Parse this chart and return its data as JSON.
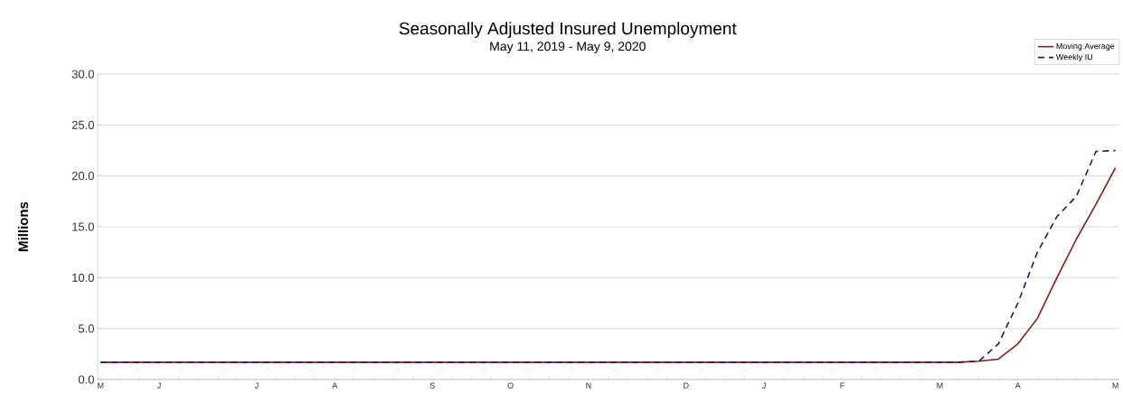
{
  "chart_data": {
    "type": "line",
    "title": "Seasonally Adjusted Insured Unemployment",
    "subtitle": "May 11, 2019 - May 9, 2020",
    "ylabel": "Millions",
    "categories": [
      "M",
      null,
      null,
      "J",
      null,
      null,
      null,
      null,
      "J",
      null,
      null,
      null,
      "A",
      null,
      null,
      null,
      null,
      "S",
      null,
      null,
      null,
      "O",
      null,
      null,
      null,
      "N",
      null,
      null,
      null,
      null,
      "D",
      null,
      null,
      null,
      "J",
      null,
      null,
      null,
      "F",
      null,
      null,
      null,
      null,
      "M",
      null,
      null,
      null,
      "A",
      null,
      null,
      null,
      null,
      "M"
    ],
    "series": [
      {
        "name": "Moving Average",
        "color": "#8b1a1a",
        "line_style": "solid",
        "values": [
          1.7,
          1.7,
          1.7,
          1.7,
          1.7,
          1.7,
          1.7,
          1.7,
          1.7,
          1.7,
          1.7,
          1.7,
          1.7,
          1.7,
          1.7,
          1.7,
          1.7,
          1.7,
          1.7,
          1.7,
          1.7,
          1.7,
          1.7,
          1.7,
          1.7,
          1.7,
          1.7,
          1.7,
          1.7,
          1.7,
          1.7,
          1.7,
          1.7,
          1.7,
          1.7,
          1.7,
          1.7,
          1.7,
          1.7,
          1.7,
          1.7,
          1.7,
          1.7,
          1.7,
          1.7,
          1.8,
          2.0,
          3.5,
          6.0,
          10.0,
          13.8,
          17.2,
          20.8
        ]
      },
      {
        "name": "Weekly IU",
        "color": "#1a1a6e",
        "line_style": "dashed",
        "values": [
          1.7,
          1.7,
          1.7,
          1.7,
          1.7,
          1.7,
          1.7,
          1.7,
          1.7,
          1.7,
          1.7,
          1.7,
          1.7,
          1.7,
          1.7,
          1.7,
          1.7,
          1.7,
          1.7,
          1.7,
          1.7,
          1.7,
          1.7,
          1.7,
          1.7,
          1.7,
          1.7,
          1.7,
          1.7,
          1.7,
          1.7,
          1.7,
          1.7,
          1.7,
          1.7,
          1.7,
          1.7,
          1.7,
          1.7,
          1.7,
          1.7,
          1.7,
          1.7,
          1.7,
          1.7,
          1.8,
          3.5,
          7.5,
          12.5,
          16.0,
          18.0,
          22.4,
          22.5
        ]
      }
    ],
    "ylim": [
      0,
      30
    ],
    "yticks": [
      {
        "value": 0,
        "label": "0.0"
      },
      {
        "value": 5,
        "label": "5.0"
      },
      {
        "value": 10,
        "label": "10.0"
      },
      {
        "value": 15,
        "label": "15.0"
      },
      {
        "value": 20,
        "label": "20.0"
      },
      {
        "value": 25,
        "label": "25.0"
      },
      {
        "value": 30,
        "label": "30.0"
      }
    ],
    "grid": "y",
    "legend": "top right"
  }
}
